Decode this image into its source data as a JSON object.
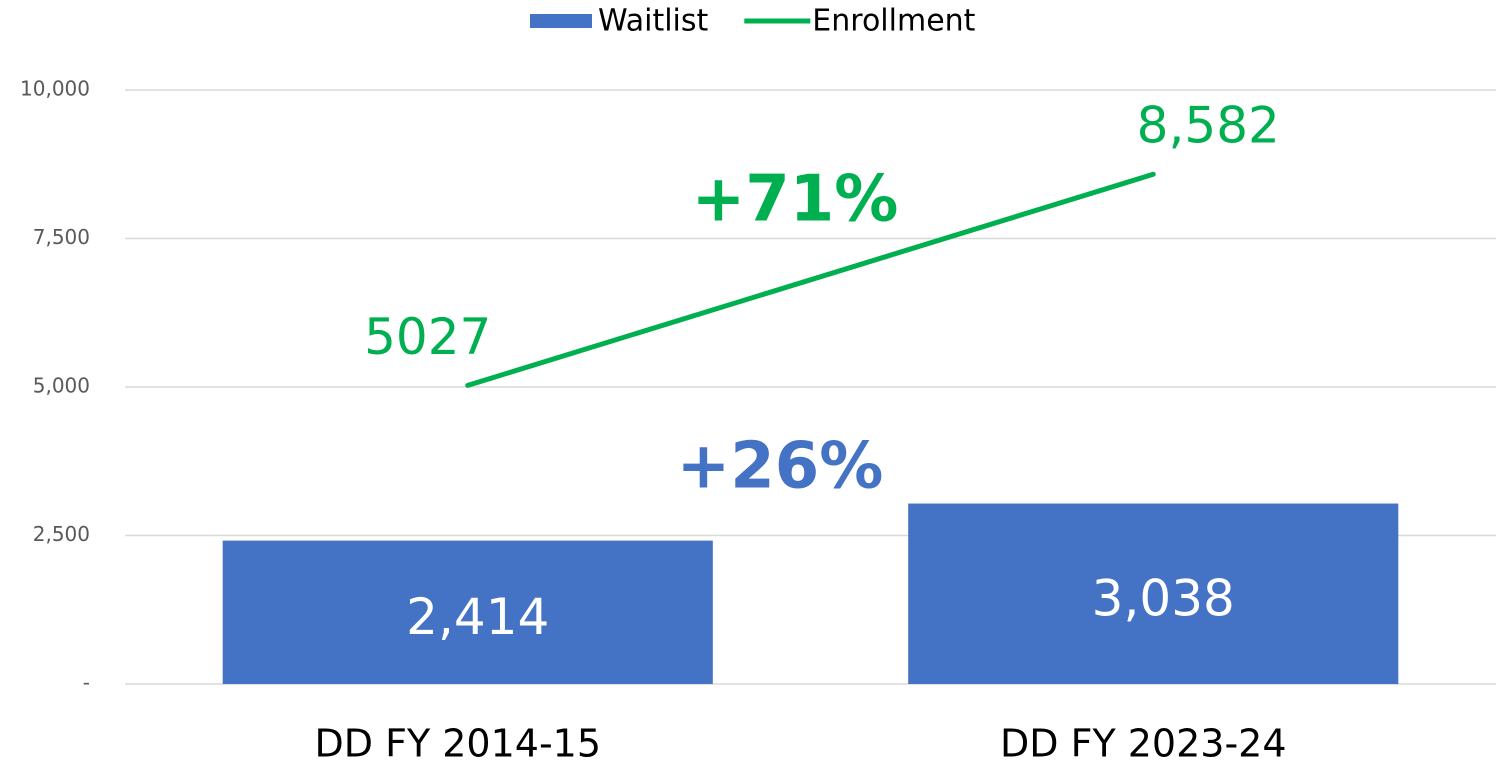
{
  "chart_data": {
    "type": "combo",
    "categories": [
      "DD FY 2014-15",
      "DD FY 2023-24"
    ],
    "series": [
      {
        "name": "Waitlist",
        "type": "bar",
        "color": "#4472c4",
        "values": [
          2414,
          3038
        ],
        "value_labels": [
          "2,414",
          "3,038"
        ]
      },
      {
        "name": "Enrollment",
        "type": "line",
        "color": "#00b050",
        "values": [
          5027,
          8582
        ],
        "value_labels": [
          "5027",
          "8,582"
        ]
      }
    ],
    "annotations": [
      {
        "text": "+71%",
        "color": "#00b050"
      },
      {
        "text": "+26%",
        "color": "#4472c4"
      }
    ],
    "ylim": [
      0,
      10000
    ],
    "yticks": [
      {
        "value": 0,
        "label": "-"
      },
      {
        "value": 2500,
        "label": "2,500"
      },
      {
        "value": 5000,
        "label": "5,000"
      },
      {
        "value": 7500,
        "label": "7,500"
      },
      {
        "value": 10000,
        "label": "10,000"
      }
    ],
    "grid": true,
    "legend": "top"
  }
}
